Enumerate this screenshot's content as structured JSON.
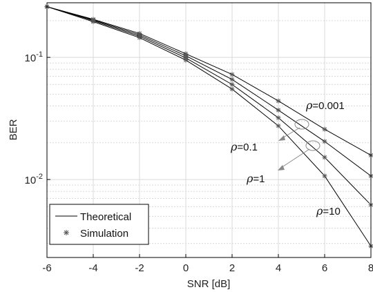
{
  "chart_data": {
    "type": "line",
    "xlabel": "SNR [dB]",
    "ylabel": "BER",
    "xlim": [
      -6,
      8
    ],
    "ylim": [
      0.0023,
      0.28
    ],
    "yscale": "log",
    "grid": true,
    "x_ticks": [
      "-6",
      "-4",
      "-2",
      "0",
      "2",
      "4",
      "6",
      "8"
    ],
    "y_ticks": [
      {
        "value": 0.1,
        "base": "10",
        "exp": "-1"
      },
      {
        "value": 0.01,
        "base": "10",
        "exp": "-2"
      }
    ],
    "x": [
      -6,
      -4,
      -2,
      0,
      2,
      4,
      6,
      8
    ],
    "series": [
      {
        "values": [
          0.26,
          0.205,
          0.157,
          0.107,
          0.0725,
          0.044,
          0.0258,
          0.0158
        ]
      },
      {
        "values": [
          0.26,
          0.203,
          0.153,
          0.103,
          0.066,
          0.037,
          0.0205,
          0.0107
        ]
      },
      {
        "values": [
          0.26,
          0.2,
          0.149,
          0.099,
          0.06,
          0.032,
          0.0152,
          0.0062
        ]
      },
      {
        "values": [
          0.26,
          0.196,
          0.145,
          0.095,
          0.055,
          0.0275,
          0.0107,
          0.00285
        ]
      }
    ],
    "annotations": [
      {
        "symbol": "ρ",
        "text": "=0.001"
      },
      {
        "symbol": "ρ",
        "text": "=0.1"
      },
      {
        "symbol": "ρ",
        "text": "=1"
      },
      {
        "symbol": "ρ",
        "text": "=10"
      }
    ],
    "legend": {
      "position": "bottom-left",
      "entries": [
        {
          "label": "Theoretical",
          "marker": "line"
        },
        {
          "label": "Simulation",
          "marker": "asterisk"
        }
      ]
    },
    "colors": {
      "line": "#000000",
      "marker": "#555555",
      "arrow": "#888888",
      "grid": "#d9d9d9"
    }
  }
}
